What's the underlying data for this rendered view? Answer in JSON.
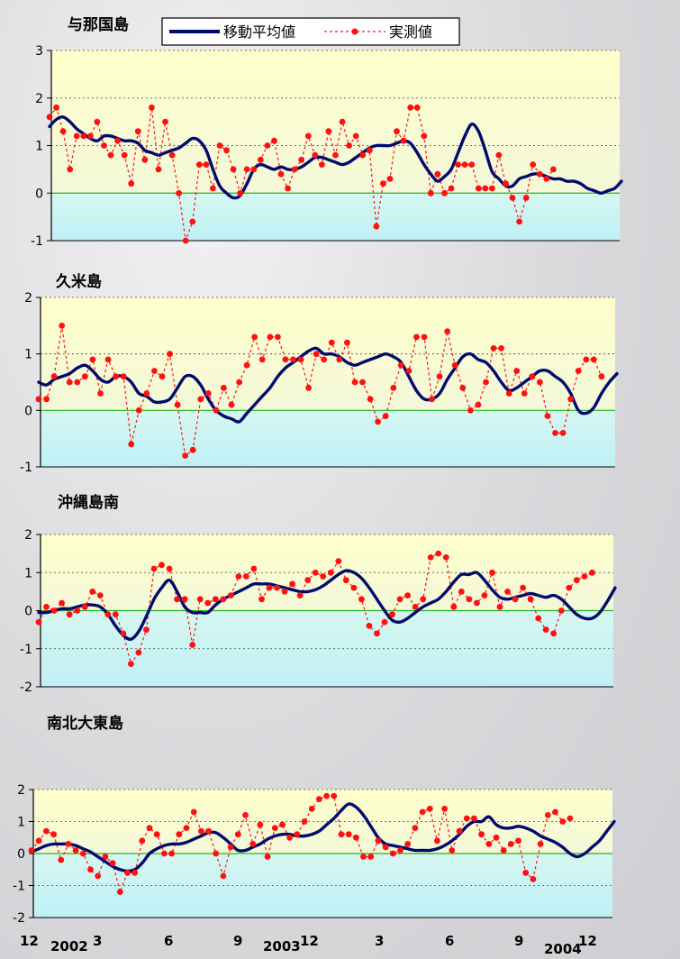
{
  "legend": {
    "moving_average_label": "移動平均値",
    "measured_label": "実測値",
    "moving_average_color": "#000a6e",
    "measured_color": "#ff1010"
  },
  "x_axis": {
    "tick_labels": [
      "12",
      "3",
      "6",
      "9",
      "12",
      "3",
      "6",
      "9",
      "12"
    ],
    "year_labels": [
      "2002",
      "2003",
      "2004"
    ]
  },
  "chart_data": [
    {
      "type": "line",
      "title": "与那国島",
      "ylim": [
        -1,
        3
      ],
      "yticks": [
        -1,
        0,
        1,
        2,
        3
      ],
      "series": [
        {
          "name": "移動平均値",
          "values": [
            1.4,
            1.55,
            1.6,
            1.5,
            1.35,
            1.25,
            1.15,
            1.1,
            1.2,
            1.2,
            1.15,
            1.1,
            1.1,
            1.05,
            0.9,
            0.85,
            0.8,
            0.85,
            0.9,
            0.95,
            1.05,
            1.15,
            1.1,
            0.9,
            0.5,
            0.15,
            0,
            -0.1,
            -0.05,
            0.2,
            0.5,
            0.6,
            0.55,
            0.5,
            0.55,
            0.5,
            0.5,
            0.55,
            0.65,
            0.75,
            0.75,
            0.7,
            0.65,
            0.6,
            0.65,
            0.75,
            0.85,
            0.95,
            1,
            1,
            1,
            1.05,
            1.1,
            1.05,
            0.85,
            0.6,
            0.4,
            0.25,
            0.35,
            0.5,
            0.85,
            1.2,
            1.45,
            1.3,
            0.9,
            0.45,
            0.3,
            0.15,
            0.15,
            0.3,
            0.35,
            0.4,
            0.4,
            0.35,
            0.3,
            0.3,
            0.25,
            0.25,
            0.2,
            0.1,
            0.05,
            0,
            0.05,
            0.1,
            0.25
          ]
        },
        {
          "name": "実測値",
          "values": [
            1.6,
            1.8,
            1.3,
            0.5,
            1.2,
            1.2,
            1.2,
            1.5,
            1,
            0.8,
            1.1,
            0.8,
            0.2,
            1.3,
            0.7,
            1.8,
            0.5,
            1.5,
            0.8,
            0,
            -1,
            -0.6,
            0.6,
            0.6,
            0.1,
            1,
            0.9,
            0.5,
            0,
            0.5,
            0.5,
            0.7,
            1,
            1.1,
            0.4,
            0.1,
            0.5,
            0.7,
            1.2,
            0.8,
            0.6,
            1.3,
            0.8,
            1.5,
            1,
            1.2,
            0.8,
            0.9,
            -0.7,
            0.2,
            0.3,
            1.3,
            1.1,
            1.8,
            1.8,
            1.2,
            0,
            0.4,
            0,
            0.1,
            0.6,
            0.6,
            0.6,
            0.1,
            0.1,
            0.1,
            0.8,
            0.2,
            -0.1,
            -0.6,
            -0.1,
            0.6,
            0.4,
            0.3,
            0.5
          ]
        }
      ]
    },
    {
      "type": "line",
      "title": "久米島",
      "ylim": [
        -1,
        2
      ],
      "yticks": [
        -1,
        0,
        1,
        2
      ],
      "series": [
        {
          "name": "移動平均値",
          "values": [
            0.5,
            0.45,
            0.55,
            0.6,
            0.65,
            0.75,
            0.8,
            0.7,
            0.55,
            0.5,
            0.6,
            0.6,
            0.5,
            0.3,
            0.25,
            0.15,
            0.15,
            0.2,
            0.4,
            0.6,
            0.6,
            0.45,
            0.2,
            0,
            -0.1,
            -0.15,
            -0.2,
            -0.05,
            0.1,
            0.25,
            0.4,
            0.6,
            0.75,
            0.85,
            0.95,
            1.05,
            1.1,
            1,
            1,
            0.95,
            0.85,
            0.8,
            0.85,
            0.9,
            0.95,
            1,
            0.95,
            0.85,
            0.6,
            0.35,
            0.2,
            0.2,
            0.3,
            0.55,
            0.75,
            0.95,
            1,
            0.9,
            0.85,
            0.7,
            0.5,
            0.35,
            0.4,
            0.5,
            0.6,
            0.7,
            0.7,
            0.6,
            0.5,
            0.3,
            0,
            -0.05,
            0.05,
            0.3,
            0.5,
            0.65
          ]
        },
        {
          "name": "実測値",
          "values": [
            0.2,
            0.2,
            0.6,
            1.5,
            0.5,
            0.5,
            0.6,
            0.9,
            0.3,
            0.9,
            0.6,
            0.6,
            -0.6,
            0,
            0.3,
            0.7,
            0.6,
            1,
            0.1,
            -0.8,
            -0.7,
            0.2,
            0.3,
            0,
            0.4,
            0.1,
            0.5,
            0.8,
            1.3,
            0.9,
            1.3,
            1.3,
            0.9,
            0.9,
            0.9,
            0.4,
            1,
            0.9,
            1.2,
            0.9,
            1.2,
            0.5,
            0.5,
            0.2,
            -0.2,
            -0.1,
            0.4,
            0.8,
            0.7,
            1.3,
            1.3,
            0.2,
            0.6,
            1.4,
            0.8,
            0.4,
            0,
            0.1,
            0.5,
            1.1,
            1.1,
            0.3,
            0.7,
            0.3,
            0.6,
            0.5,
            -0.1,
            -0.4,
            -0.4,
            0.2,
            0.7,
            0.9,
            0.9,
            0.6
          ]
        }
      ]
    },
    {
      "type": "line",
      "title": "沖縄島南",
      "ylim": [
        -2,
        2
      ],
      "yticks": [
        -2,
        -1,
        0,
        1,
        2
      ],
      "series": [
        {
          "name": "移動平均値",
          "values": [
            -0.05,
            -0.05,
            0,
            0.05,
            0.05,
            0.1,
            0.15,
            0.15,
            0.1,
            -0.1,
            -0.4,
            -0.65,
            -0.75,
            -0.55,
            -0.15,
            0.3,
            0.6,
            0.8,
            0.5,
            0.1,
            -0.05,
            -0.05,
            -0.05,
            0.15,
            0.3,
            0.4,
            0.5,
            0.6,
            0.7,
            0.7,
            0.7,
            0.65,
            0.6,
            0.55,
            0.5,
            0.5,
            0.55,
            0.65,
            0.8,
            0.95,
            1.05,
            1,
            0.85,
            0.6,
            0.3,
            0,
            -0.25,
            -0.3,
            -0.2,
            -0.05,
            0.1,
            0.2,
            0.3,
            0.5,
            0.75,
            0.95,
            0.95,
            1,
            0.8,
            0.55,
            0.35,
            0.3,
            0.35,
            0.4,
            0.45,
            0.4,
            0.35,
            0.4,
            0.3,
            0.1,
            -0.1,
            -0.2,
            -0.2,
            -0.05,
            0.25,
            0.6
          ]
        },
        {
          "name": "実測値",
          "values": [
            -0.3,
            0.1,
            0,
            0.2,
            -0.1,
            0,
            0.1,
            0.5,
            0.4,
            -0.1,
            -0.1,
            -0.6,
            -1.4,
            -1.1,
            -0.5,
            1.1,
            1.2,
            1.1,
            0.3,
            0.3,
            -0.9,
            0.3,
            0.2,
            0.3,
            0.3,
            0.4,
            0.9,
            0.9,
            1.1,
            0.3,
            0.6,
            0.6,
            0.5,
            0.7,
            0.4,
            0.8,
            1,
            0.9,
            1,
            1.3,
            0.8,
            0.6,
            0.3,
            -0.4,
            -0.6,
            -0.3,
            -0.1,
            0.3,
            0.4,
            0.1,
            0.3,
            1.4,
            1.5,
            1.4,
            0.1,
            0.5,
            0.3,
            0.2,
            0.4,
            1,
            0.1,
            0.5,
            0.3,
            0.6,
            0.3,
            -0.2,
            -0.5,
            -0.6,
            0,
            0.6,
            0.8,
            0.9,
            1
          ]
        }
      ]
    },
    {
      "type": "line",
      "title": "南北大東島",
      "ylim": [
        -2,
        2
      ],
      "yticks": [
        -2,
        -1,
        0,
        1,
        2
      ],
      "series": [
        {
          "name": "移動平均値",
          "values": [
            0.05,
            0.15,
            0.25,
            0.3,
            0.3,
            0.3,
            0.25,
            0.15,
            0.05,
            -0.1,
            -0.25,
            -0.4,
            -0.5,
            -0.55,
            -0.5,
            -0.3,
            0,
            0.15,
            0.25,
            0.3,
            0.3,
            0.35,
            0.45,
            0.55,
            0.65,
            0.65,
            0.5,
            0.3,
            0.1,
            0.1,
            0.2,
            0.3,
            0.45,
            0.55,
            0.6,
            0.6,
            0.55,
            0.55,
            0.6,
            0.7,
            0.9,
            1.1,
            1.35,
            1.55,
            1.45,
            1.2,
            0.85,
            0.5,
            0.3,
            0.25,
            0.2,
            0.15,
            0.1,
            0.1,
            0.1,
            0.15,
            0.25,
            0.4,
            0.6,
            0.85,
            1,
            1,
            1.15,
            0.9,
            0.8,
            0.8,
            0.85,
            0.8,
            0.7,
            0.55,
            0.45,
            0.35,
            0.2,
            0,
            -0.1,
            0,
            0.2,
            0.4,
            0.7,
            1
          ]
        },
        {
          "name": "実測値",
          "values": [
            0.1,
            0.4,
            0.7,
            0.6,
            -0.2,
            0.3,
            0.1,
            0,
            -0.5,
            -0.7,
            -0.1,
            -0.3,
            -1.2,
            -0.6,
            -0.6,
            0.4,
            0.8,
            0.6,
            0,
            0,
            0.6,
            0.8,
            1.3,
            0.7,
            0.7,
            0,
            -0.7,
            0.2,
            0.6,
            1.2,
            0.3,
            0.9,
            -0.1,
            0.8,
            0.9,
            0.5,
            0.6,
            1,
            1.4,
            1.7,
            1.8,
            1.8,
            0.6,
            0.6,
            0.5,
            -0.1,
            -0.1,
            0.4,
            0.2,
            0,
            0.1,
            0.3,
            0.8,
            1.3,
            1.4,
            0.4,
            1.4,
            0.1,
            0.7,
            1.1,
            1.1,
            0.6,
            0.3,
            0.5,
            0.1,
            0.3,
            0.4,
            -0.6,
            -0.8,
            0.3,
            1.2,
            1.3,
            1,
            1.1
          ]
        }
      ]
    }
  ]
}
